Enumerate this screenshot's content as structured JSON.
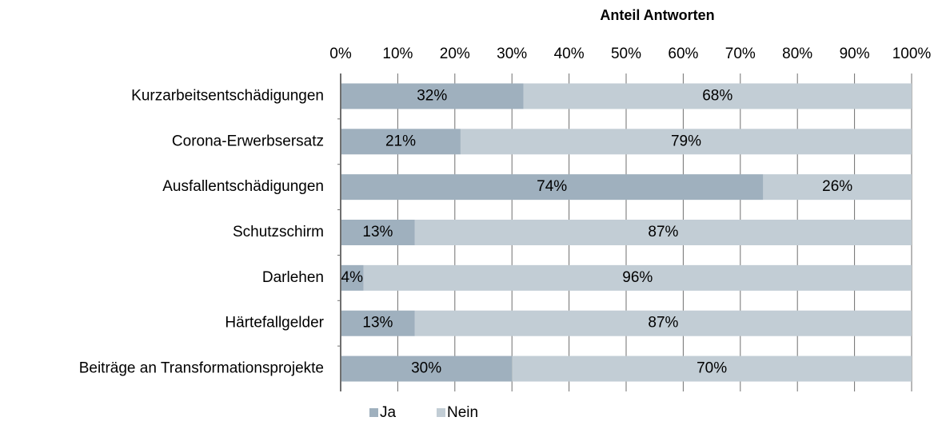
{
  "chart_data": {
    "type": "stacked_barh",
    "title": "Anteil Antworten",
    "categories": [
      "Kurzarbeitsentschädigungen",
      "Corona-Erwerbsersatz",
      "Ausfallentschädigungen",
      "Schutzschirm",
      "Darlehen",
      "Härtefallgelder",
      "Beiträge an Transformationsprojekte"
    ],
    "series": [
      {
        "name": "Ja",
        "color": "#9fb0be",
        "values": [
          32,
          21,
          74,
          13,
          4,
          13,
          30
        ],
        "value_labels": [
          "32%",
          "21%",
          "74%",
          "13%",
          "4%",
          "13%",
          "30%"
        ]
      },
      {
        "name": "Nein",
        "color": "#c2cdd5",
        "values": [
          68,
          79,
          26,
          87,
          96,
          87,
          70
        ],
        "value_labels": [
          "68%",
          "79%",
          "26%",
          "87%",
          "96%",
          "87%",
          "70%"
        ]
      }
    ],
    "xlim": [
      0,
      100
    ],
    "xticks": [
      {
        "value": 0,
        "label": "0%"
      },
      {
        "value": 10,
        "label": "10%"
      },
      {
        "value": 20,
        "label": "20%"
      },
      {
        "value": 30,
        "label": "30%"
      },
      {
        "value": 40,
        "label": "40%"
      },
      {
        "value": 50,
        "label": "50%"
      },
      {
        "value": 60,
        "label": "60%"
      },
      {
        "value": 70,
        "label": "70%"
      },
      {
        "value": 80,
        "label": "80%"
      },
      {
        "value": 90,
        "label": "90%"
      },
      {
        "value": 100,
        "label": "100%"
      }
    ],
    "grid": true,
    "legend": "bottom"
  }
}
